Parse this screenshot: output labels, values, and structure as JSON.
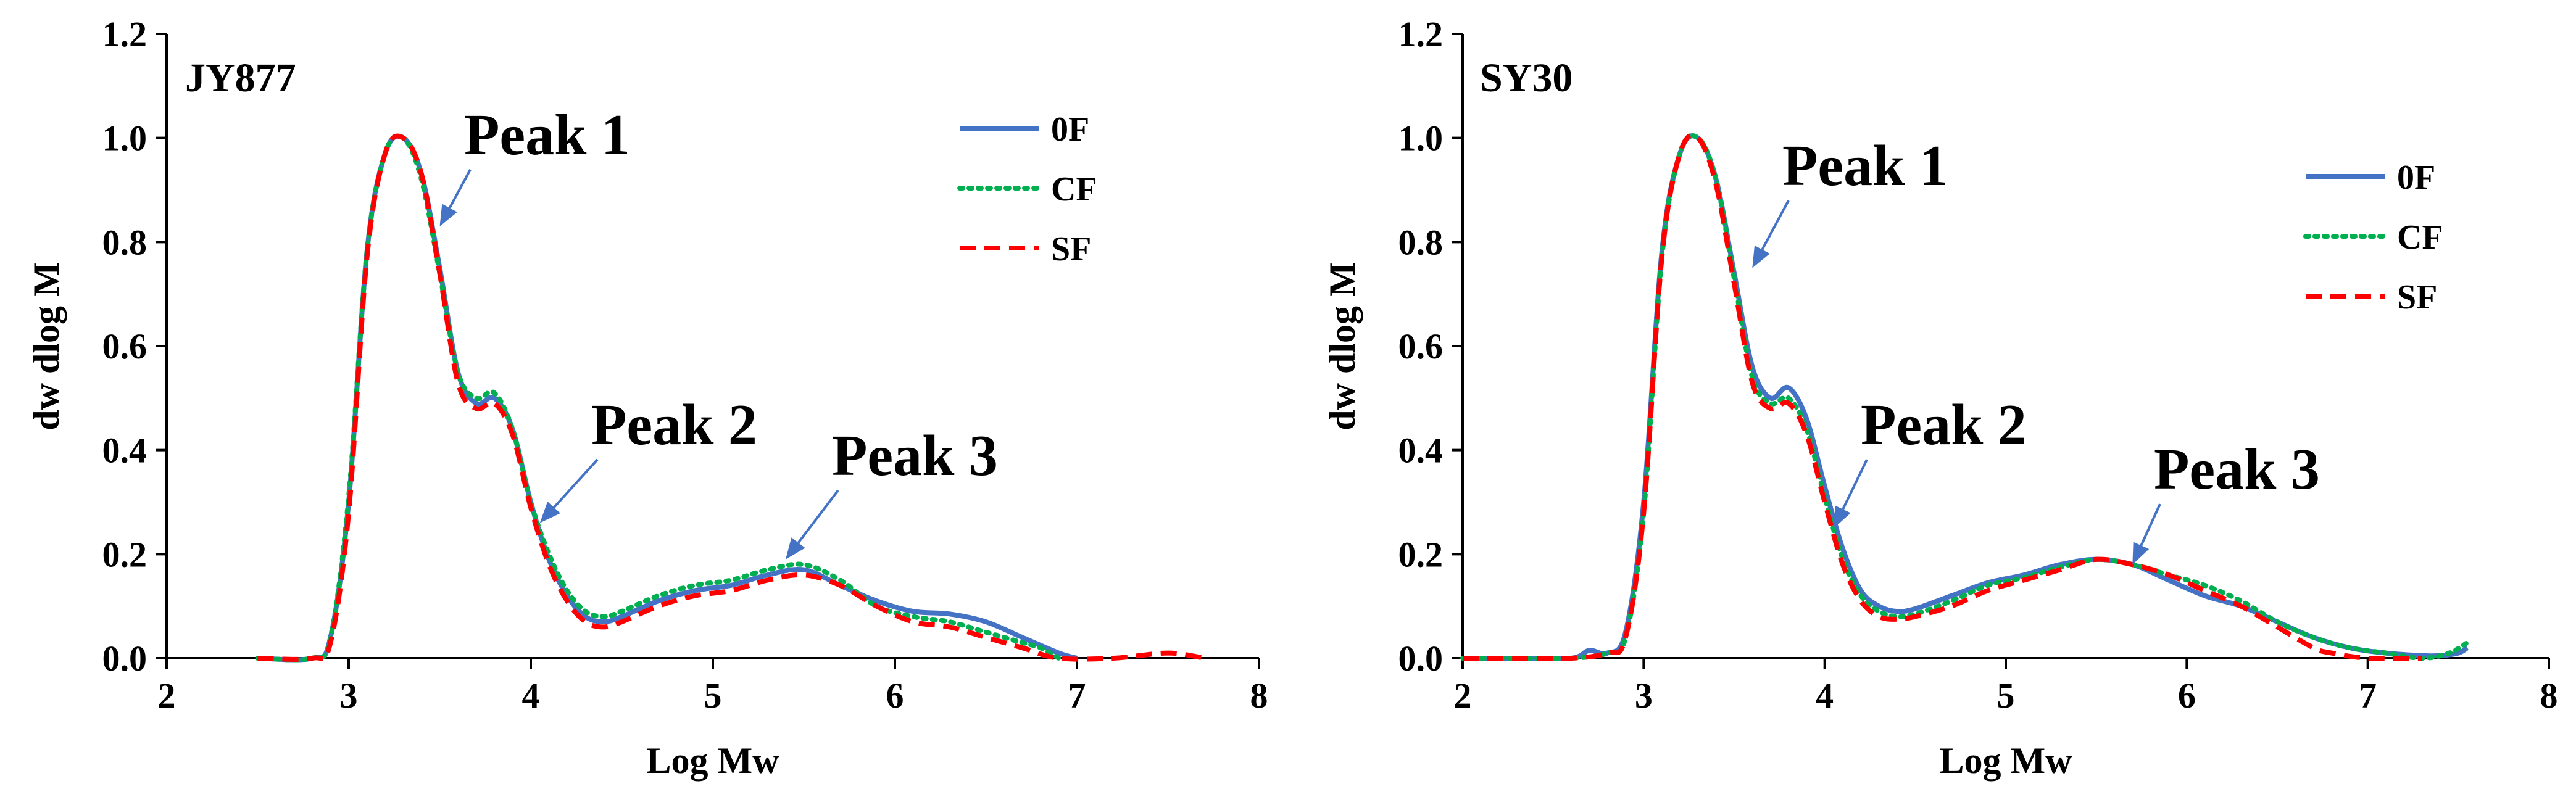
{
  "chart_data": [
    {
      "type": "line",
      "title": "JY877",
      "xlabel": "Log Mw",
      "ylabel": "dw dlog M",
      "xlim": [
        2,
        8
      ],
      "ylim": [
        0,
        1.2
      ],
      "xticks": [
        "2",
        "3",
        "4",
        "5",
        "6",
        "7",
        "8"
      ],
      "yticks": [
        "0.0",
        "0.2",
        "0.4",
        "0.6",
        "0.8",
        "1.0",
        "1.2"
      ],
      "legend": [
        "0F",
        "CF",
        "SF"
      ],
      "series": [
        {
          "name": "0F",
          "color": "#4472C4",
          "dash": "solid",
          "x": [
            2.5,
            2.8,
            2.9,
            3.0,
            3.1,
            3.2,
            3.3,
            3.4,
            3.5,
            3.6,
            3.7,
            3.8,
            3.9,
            4.0,
            4.1,
            4.2,
            4.3,
            4.4,
            4.5,
            4.7,
            4.9,
            5.1,
            5.3,
            5.5,
            5.7,
            5.9,
            6.1,
            6.3,
            6.5,
            6.7,
            6.9,
            7.0
          ],
          "y": [
            0.0,
            0.0,
            0.04,
            0.3,
            0.78,
            0.97,
            1.0,
            0.93,
            0.75,
            0.55,
            0.49,
            0.5,
            0.44,
            0.3,
            0.19,
            0.12,
            0.08,
            0.07,
            0.08,
            0.11,
            0.13,
            0.14,
            0.16,
            0.17,
            0.14,
            0.11,
            0.09,
            0.085,
            0.07,
            0.04,
            0.01,
            0.0
          ]
        },
        {
          "name": "CF",
          "color": "#00B050",
          "dash": "dotted",
          "x": [
            2.5,
            2.8,
            2.9,
            3.0,
            3.1,
            3.2,
            3.3,
            3.4,
            3.5,
            3.6,
            3.7,
            3.8,
            3.9,
            4.0,
            4.1,
            4.2,
            4.3,
            4.4,
            4.5,
            4.7,
            4.9,
            5.1,
            5.3,
            5.5,
            5.7,
            5.9,
            6.1,
            6.3,
            6.5,
            6.7,
            6.8,
            6.9
          ],
          "y": [
            0.0,
            0.0,
            0.04,
            0.31,
            0.78,
            0.97,
            1.0,
            0.92,
            0.74,
            0.55,
            0.5,
            0.51,
            0.44,
            0.3,
            0.2,
            0.13,
            0.09,
            0.08,
            0.09,
            0.12,
            0.14,
            0.15,
            0.17,
            0.18,
            0.15,
            0.1,
            0.08,
            0.07,
            0.05,
            0.03,
            0.02,
            0.0
          ]
        },
        {
          "name": "SF",
          "color": "#FF0000",
          "dash": "dashed",
          "x": [
            2.5,
            2.8,
            2.9,
            3.0,
            3.1,
            3.2,
            3.3,
            3.4,
            3.5,
            3.6,
            3.7,
            3.8,
            3.9,
            4.0,
            4.1,
            4.2,
            4.3,
            4.4,
            4.5,
            4.7,
            4.9,
            5.1,
            5.3,
            5.5,
            5.7,
            5.9,
            6.1,
            6.3,
            6.5,
            6.7,
            6.9,
            7.2,
            7.5,
            7.7
          ],
          "y": [
            0.0,
            0.0,
            0.03,
            0.28,
            0.77,
            0.97,
            1.0,
            0.93,
            0.74,
            0.53,
            0.48,
            0.49,
            0.43,
            0.29,
            0.18,
            0.11,
            0.07,
            0.06,
            0.07,
            0.1,
            0.12,
            0.13,
            0.15,
            0.16,
            0.14,
            0.1,
            0.07,
            0.06,
            0.04,
            0.02,
            0.0,
            0.0,
            0.01,
            0.0
          ]
        }
      ],
      "annotations": [
        {
          "text": "Peak 1",
          "point": [
            3.5,
            0.83
          ]
        },
        {
          "text": "Peak 2",
          "point": [
            4.05,
            0.26
          ]
        },
        {
          "text": "Peak 3",
          "point": [
            5.4,
            0.19
          ]
        }
      ]
    },
    {
      "type": "line",
      "title": "SY30",
      "xlabel": "Log Mw",
      "ylabel": "dw dlog M",
      "xlim": [
        2,
        8
      ],
      "ylim": [
        0,
        1.2
      ],
      "xticks": [
        "2",
        "3",
        "4",
        "5",
        "6",
        "7",
        "8"
      ],
      "yticks": [
        "0.0",
        "0.2",
        "0.4",
        "0.6",
        "0.8",
        "1.0",
        "1.2"
      ],
      "legend": [
        "0F",
        "CF",
        "SF"
      ],
      "series": [
        {
          "name": "0F",
          "color": "#4472C4",
          "dash": "solid",
          "x": [
            2.0,
            2.3,
            2.6,
            2.7,
            2.8,
            2.9,
            3.0,
            3.1,
            3.2,
            3.3,
            3.4,
            3.5,
            3.6,
            3.7,
            3.8,
            3.9,
            4.0,
            4.1,
            4.2,
            4.3,
            4.4,
            4.5,
            4.7,
            4.9,
            5.1,
            5.3,
            5.5,
            5.7,
            5.9,
            6.1,
            6.3,
            6.5,
            6.7,
            6.9,
            7.1,
            7.3,
            7.4,
            7.5,
            7.55
          ],
          "y": [
            0.0,
            0.0,
            0.0,
            0.015,
            0.01,
            0.05,
            0.3,
            0.78,
            0.97,
            1.0,
            0.92,
            0.74,
            0.56,
            0.5,
            0.52,
            0.46,
            0.33,
            0.21,
            0.13,
            0.1,
            0.09,
            0.095,
            0.12,
            0.145,
            0.16,
            0.18,
            0.19,
            0.18,
            0.15,
            0.12,
            0.1,
            0.07,
            0.04,
            0.02,
            0.01,
            0.005,
            0.005,
            0.01,
            0.02
          ]
        },
        {
          "name": "CF",
          "color": "#00B050",
          "dash": "dotted",
          "x": [
            2.0,
            2.3,
            2.6,
            2.8,
            2.9,
            3.0,
            3.1,
            3.2,
            3.3,
            3.4,
            3.5,
            3.6,
            3.7,
            3.8,
            3.9,
            4.0,
            4.1,
            4.2,
            4.3,
            4.4,
            4.5,
            4.7,
            4.9,
            5.1,
            5.3,
            5.5,
            5.7,
            5.9,
            6.1,
            6.3,
            6.5,
            6.7,
            6.9,
            7.1,
            7.3,
            7.45,
            7.55
          ],
          "y": [
            0.0,
            0.0,
            0.0,
            0.01,
            0.04,
            0.28,
            0.77,
            0.97,
            1.0,
            0.92,
            0.73,
            0.54,
            0.49,
            0.5,
            0.44,
            0.31,
            0.19,
            0.12,
            0.09,
            0.08,
            0.085,
            0.11,
            0.14,
            0.155,
            0.175,
            0.19,
            0.18,
            0.16,
            0.14,
            0.11,
            0.07,
            0.04,
            0.02,
            0.01,
            0.0,
            0.01,
            0.03
          ]
        },
        {
          "name": "SF",
          "color": "#FF0000",
          "dash": "dashed",
          "x": [
            2.0,
            2.3,
            2.6,
            2.8,
            2.9,
            3.0,
            3.1,
            3.2,
            3.3,
            3.4,
            3.5,
            3.6,
            3.7,
            3.8,
            3.9,
            4.0,
            4.1,
            4.2,
            4.3,
            4.4,
            4.5,
            4.7,
            4.9,
            5.1,
            5.3,
            5.5,
            5.7,
            5.9,
            6.1,
            6.3,
            6.5,
            6.7,
            6.8,
            7.0,
            7.3
          ],
          "y": [
            0.0,
            0.0,
            0.0,
            0.01,
            0.04,
            0.28,
            0.77,
            0.97,
            1.0,
            0.91,
            0.72,
            0.53,
            0.48,
            0.49,
            0.43,
            0.3,
            0.18,
            0.11,
            0.08,
            0.075,
            0.08,
            0.1,
            0.13,
            0.15,
            0.17,
            0.19,
            0.18,
            0.16,
            0.13,
            0.1,
            0.06,
            0.02,
            0.01,
            0.0,
            0.0
          ]
        }
      ],
      "annotations": [
        {
          "text": "Peak 1",
          "point": [
            3.6,
            0.75
          ]
        },
        {
          "text": "Peak 2",
          "point": [
            4.05,
            0.25
          ]
        },
        {
          "text": "Peak 3",
          "point": [
            5.7,
            0.18
          ]
        }
      ]
    }
  ]
}
